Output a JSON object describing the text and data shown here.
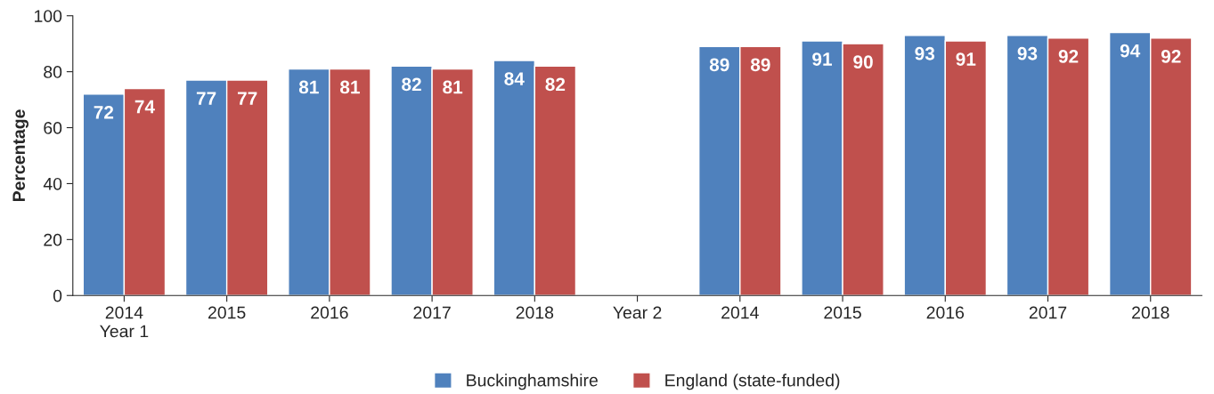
{
  "chart_data": {
    "type": "bar",
    "ylabel": "Percentage",
    "categories": [
      "2014\nYear 1",
      "2015",
      "2016",
      "2017",
      "2018",
      "Year 2",
      "2014",
      "2015",
      "2016",
      "2017",
      "2018"
    ],
    "series": [
      {
        "name": "Buckinghamshire",
        "color": "#4f81bd",
        "values": [
          72,
          77,
          81,
          82,
          84,
          null,
          89,
          91,
          93,
          93,
          94
        ]
      },
      {
        "name": "England (state-funded)",
        "color": "#c0504d",
        "values": [
          74,
          77,
          81,
          81,
          82,
          null,
          89,
          90,
          91,
          92,
          92
        ]
      }
    ],
    "ylim": [
      0,
      100
    ],
    "yticks": [
      0,
      20,
      40,
      60,
      80,
      100
    ],
    "grid": false,
    "legend": "bottom",
    "data_labels": true
  }
}
